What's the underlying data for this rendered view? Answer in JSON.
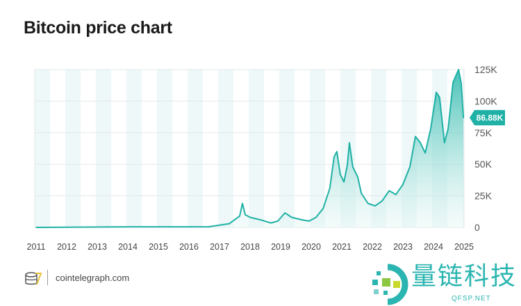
{
  "chart_data": {
    "type": "area",
    "title": "Bitcoin price chart",
    "xlabel": "",
    "ylabel": "",
    "x_ticks": [
      "2011",
      "2012",
      "2013",
      "2014",
      "2015",
      "2016",
      "2017",
      "2018",
      "2019",
      "2020",
      "2021",
      "2022",
      "2023",
      "2024",
      "2025"
    ],
    "y_ticks": [
      "0",
      "25K",
      "50K",
      "75K",
      "100K",
      "125K"
    ],
    "y_tick_values": [
      0,
      25,
      50,
      75,
      100,
      125
    ],
    "xlim": [
      2011,
      2025
    ],
    "ylim": [
      0,
      125
    ],
    "y_unit": "K USD",
    "grid": true,
    "last_value_label": "86.88K",
    "series": [
      {
        "color": "#1fb1a5",
        "points": [
          [
            2011.0,
            0
          ],
          [
            2014.0,
            0.5
          ],
          [
            2016.64,
            0.5
          ],
          [
            2017.32,
            3
          ],
          [
            2017.66,
            9
          ],
          [
            2017.75,
            19
          ],
          [
            2017.84,
            10
          ],
          [
            2018.0,
            8
          ],
          [
            2018.34,
            6
          ],
          [
            2018.68,
            3.5
          ],
          [
            2018.91,
            5
          ],
          [
            2019.14,
            11.5
          ],
          [
            2019.36,
            8
          ],
          [
            2019.7,
            6
          ],
          [
            2019.93,
            5
          ],
          [
            2020.16,
            8
          ],
          [
            2020.39,
            15
          ],
          [
            2020.61,
            31
          ],
          [
            2020.75,
            56
          ],
          [
            2020.84,
            60
          ],
          [
            2020.95,
            42
          ],
          [
            2021.07,
            36
          ],
          [
            2021.18,
            49
          ],
          [
            2021.25,
            67
          ],
          [
            2021.36,
            48
          ],
          [
            2021.52,
            40
          ],
          [
            2021.64,
            27
          ],
          [
            2021.86,
            19
          ],
          [
            2022.09,
            17
          ],
          [
            2022.32,
            21
          ],
          [
            2022.55,
            29
          ],
          [
            2022.77,
            26
          ],
          [
            2023.0,
            34
          ],
          [
            2023.23,
            48
          ],
          [
            2023.41,
            72
          ],
          [
            2023.57,
            67
          ],
          [
            2023.73,
            59
          ],
          [
            2023.91,
            78
          ],
          [
            2024.09,
            107
          ],
          [
            2024.2,
            103
          ],
          [
            2024.36,
            67
          ],
          [
            2024.48,
            78
          ],
          [
            2024.64,
            115
          ],
          [
            2024.75,
            121
          ],
          [
            2024.82,
            125
          ],
          [
            2024.91,
            114
          ],
          [
            2024.98,
            86.88
          ]
        ]
      }
    ]
  },
  "footer": {
    "site": "cointelegraph.com"
  },
  "watermark": {
    "cn": "量链科技",
    "en": "QFSP.NET"
  }
}
